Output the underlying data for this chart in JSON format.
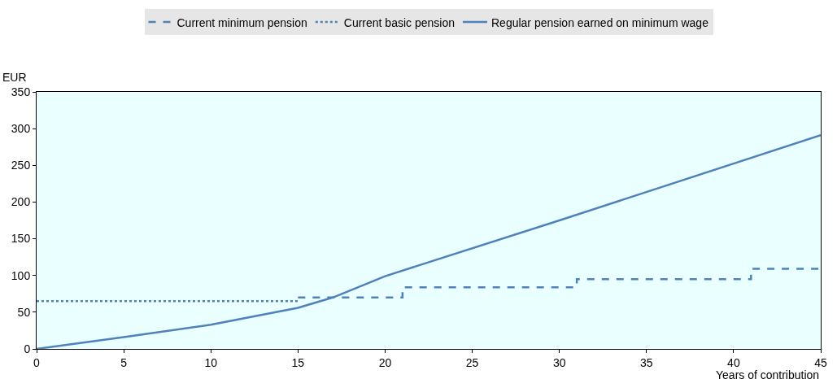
{
  "chart_data": {
    "type": "line",
    "xlabel": "Years of contribution",
    "ylabel": "EUR",
    "xlim": [
      0,
      45
    ],
    "xticks": [
      0,
      5,
      10,
      15,
      20,
      25,
      30,
      35,
      40,
      45
    ],
    "ylim": [
      0,
      350
    ],
    "yticks": [
      0,
      50,
      100,
      150,
      200,
      250,
      300,
      350
    ],
    "grid": false,
    "legend": "top",
    "marker": "none",
    "series": [
      {
        "name": "Current minimum pension",
        "type": "step",
        "color": "#4f81bd",
        "line_style": "dashed",
        "x": [
          15,
          21,
          31,
          41,
          45
        ],
        "values": [
          70,
          84,
          95,
          109,
          109
        ]
      },
      {
        "name": "Current basic pension",
        "color": "#4f81bd",
        "line_style": "dotted",
        "x": [
          0,
          15
        ],
        "values": [
          65,
          65
        ]
      },
      {
        "name": "Regular pension earned on minimum wage",
        "color": "#4f81bd",
        "line_style": "solid",
        "x": [
          0,
          5,
          10,
          15,
          17,
          20,
          30,
          45
        ],
        "values": [
          0,
          16,
          33,
          56,
          70,
          99,
          175,
          291
        ]
      }
    ]
  }
}
